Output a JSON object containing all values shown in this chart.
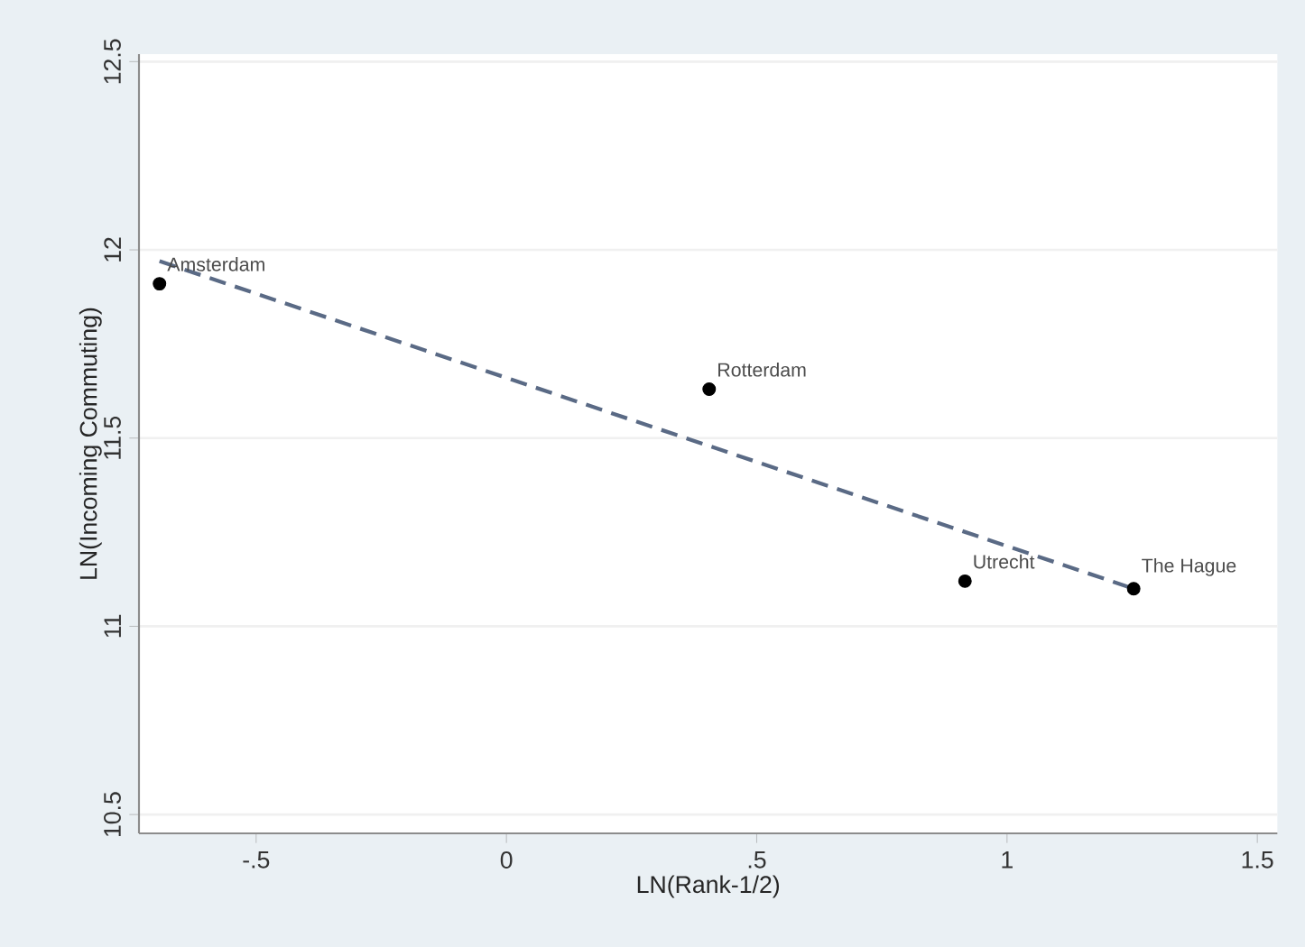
{
  "chart_data": {
    "type": "scatter",
    "xlabel": "LN(Rank-1/2)",
    "ylabel": "LN(Incoming Commuting)",
    "xlim": [
      -0.734,
      1.54
    ],
    "ylim": [
      10.45,
      12.52
    ],
    "xticks": [
      {
        "value": -0.5,
        "label": "-.5"
      },
      0,
      {
        "value": 0.5,
        "label": ".5"
      },
      1,
      1.5
    ],
    "yticks": [
      10.5,
      11,
      11.5,
      12,
      12.5
    ],
    "grid": "y",
    "series": [
      {
        "color": "#000000",
        "marker": "circle",
        "x": [
          -0.693,
          0.405,
          0.916,
          1.253
        ],
        "values": [
          11.91,
          11.63,
          11.12,
          11.1
        ]
      },
      {
        "type": "line",
        "color": "#5a6a85",
        "line_style": "dashed",
        "marker": "none",
        "x": [
          -0.693,
          1.253
        ],
        "values": [
          11.97,
          11.1
        ]
      }
    ],
    "annotations": [
      {
        "text": "Amsterdam",
        "x": -0.693,
        "y": 11.91
      },
      {
        "text": "Rotterdam",
        "x": 0.405,
        "y": 11.63
      },
      {
        "text": "Utrecht",
        "x": 0.916,
        "y": 11.12
      },
      {
        "text": "The Hague",
        "x": 1.253,
        "y": 11.1
      }
    ]
  }
}
